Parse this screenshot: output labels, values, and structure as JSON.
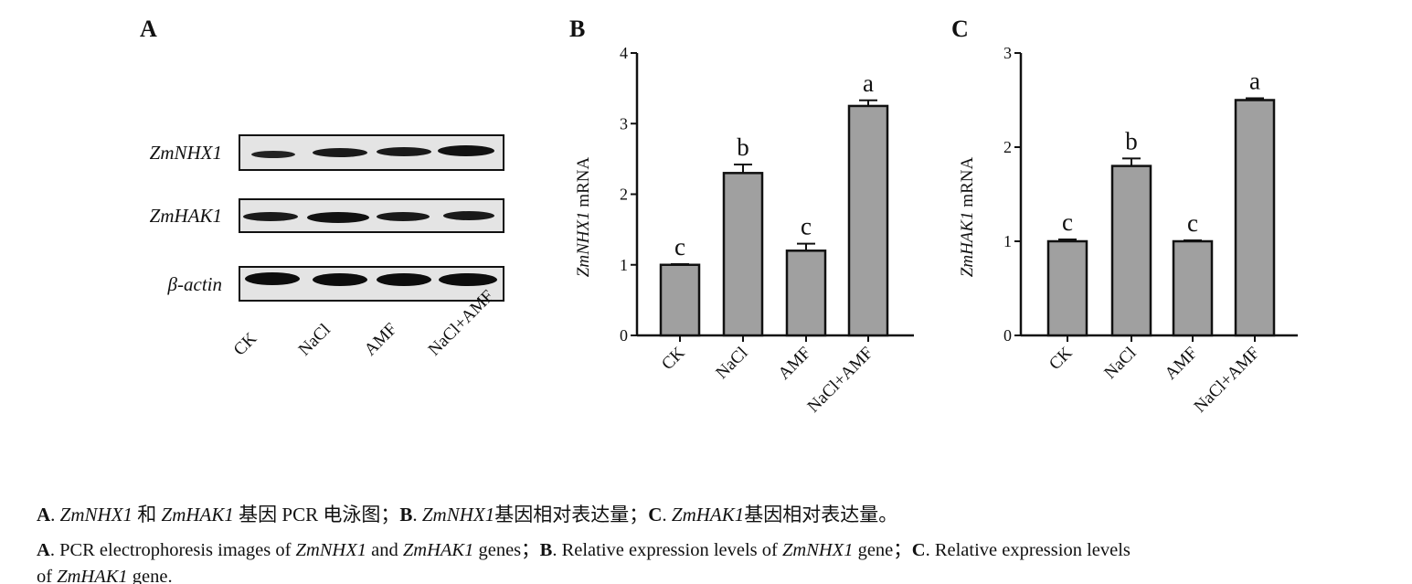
{
  "panel_labels": [
    "A",
    "B",
    "C"
  ],
  "gel": {
    "genes": [
      "ZmNHX1",
      "ZmHAK1",
      "β-actin"
    ],
    "lanes": [
      "CK",
      "NaCl",
      "AMF",
      "NaCl+AMF"
    ]
  },
  "chart_data": [
    {
      "type": "bar",
      "ylabel": [
        "ZmNHX1",
        "mRNA"
      ],
      "categories": [
        "CK",
        "NaCl",
        "AMF",
        "NaCl+AMF"
      ],
      "values": [
        1.0,
        2.3,
        1.2,
        3.25
      ],
      "errors": [
        0.01,
        0.12,
        0.1,
        0.08
      ],
      "letters": [
        "c",
        "b",
        "c",
        "a"
      ],
      "color": "#a0a0a0",
      "ylim": [
        0,
        4
      ],
      "yticks": [
        0,
        1,
        2,
        3,
        4
      ]
    },
    {
      "type": "bar",
      "ylabel": [
        "ZmHAK1",
        "mRNA"
      ],
      "categories": [
        "CK",
        "NaCl",
        "AMF",
        "NaCl+AMF"
      ],
      "values": [
        1.0,
        1.8,
        1.0,
        2.5
      ],
      "errors": [
        0.02,
        0.08,
        0.01,
        0.02
      ],
      "letters": [
        "c",
        "b",
        "c",
        "a"
      ],
      "color": "#a0a0a0",
      "ylim": [
        0,
        3
      ],
      "yticks": [
        0,
        1,
        2,
        3
      ]
    }
  ],
  "caption": {
    "line1": [
      "A",
      ". ",
      "ZmNHX1",
      " 和 ",
      "ZmHAK1",
      " 基因 PCR 电泳图；",
      "B",
      ". ",
      "ZmNHX1",
      "基因相对表达量；",
      "C",
      ". ",
      "ZmHAK1",
      "基因相对表达量。"
    ],
    "line2": [
      "A",
      ". PCR electrophoresis images of ",
      "ZmNHX1",
      " and ",
      "ZmHAK1",
      " genes；",
      "B",
      ". Relative expression levels of ",
      "ZmNHX1",
      " gene；",
      "C",
      ". Relative expression levels"
    ],
    "line3": [
      "of ",
      "ZmHAK1",
      " gene."
    ]
  }
}
